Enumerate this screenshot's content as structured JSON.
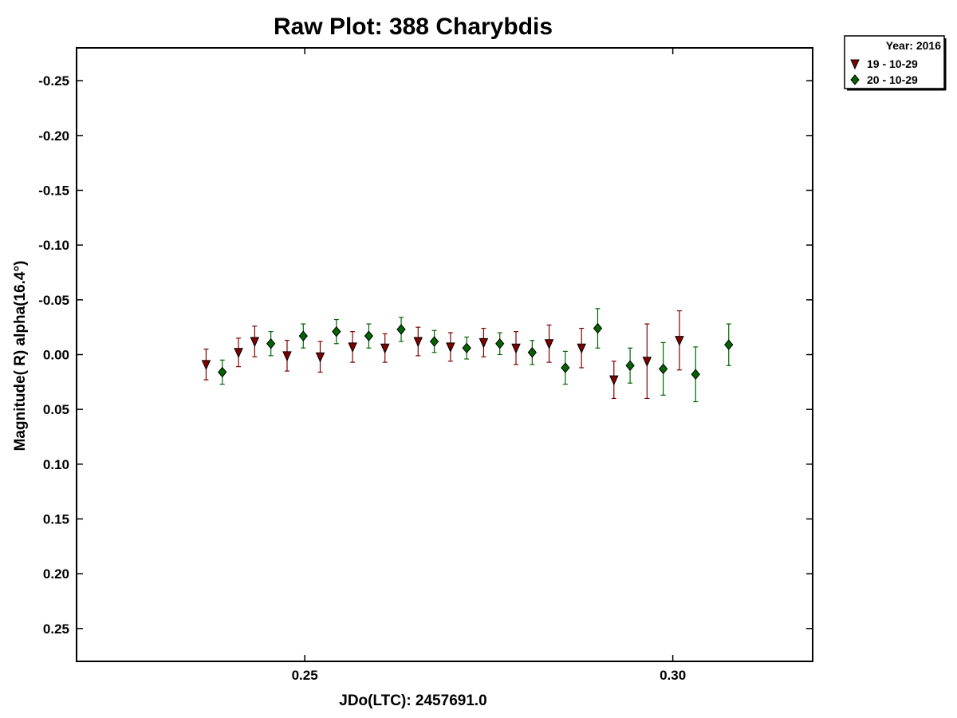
{
  "chart_data": {
    "type": "scatter",
    "title": "Raw Plot: 388 Charybdis",
    "xlabel": "JDo(LTC): 2457691.0",
    "ylabel": "Magnitude( R) alpha(16.4°)",
    "xlim": [
      0.219,
      0.319
    ],
    "ylim": [
      0.28,
      -0.28
    ],
    "y_inverted": true,
    "xticks": [
      {
        "value": 0.25,
        "label": "0.25"
      },
      {
        "value": 0.3,
        "label": "0.30"
      }
    ],
    "yticks": [
      {
        "value": -0.25,
        "label": "-0.25"
      },
      {
        "value": -0.2,
        "label": "-0.20"
      },
      {
        "value": -0.15,
        "label": "-0.15"
      },
      {
        "value": -0.1,
        "label": "-0.10"
      },
      {
        "value": -0.05,
        "label": "-0.05"
      },
      {
        "value": 0.0,
        "label": "0.00"
      },
      {
        "value": 0.05,
        "label": "0.05"
      },
      {
        "value": 0.1,
        "label": "0.10"
      },
      {
        "value": 0.15,
        "label": "0.15"
      },
      {
        "value": 0.2,
        "label": "0.20"
      },
      {
        "value": 0.25,
        "label": "0.25"
      }
    ],
    "grid": false,
    "legend": {
      "placement": "outside-top-right",
      "title": "Year: 2016"
    },
    "series": [
      {
        "name": "19 - 10-29",
        "marker": "triangle-down",
        "color": "#800000",
        "points": [
          {
            "x": 0.2366,
            "y": 0.009,
            "err": 0.014
          },
          {
            "x": 0.241,
            "y": -0.002,
            "err": 0.013
          },
          {
            "x": 0.2432,
            "y": -0.012,
            "err": 0.014
          },
          {
            "x": 0.2476,
            "y": 0.001,
            "err": 0.014
          },
          {
            "x": 0.2521,
            "y": 0.002,
            "err": 0.014
          },
          {
            "x": 0.2565,
            "y": -0.007,
            "err": 0.014
          },
          {
            "x": 0.2609,
            "y": -0.006,
            "err": 0.013
          },
          {
            "x": 0.2654,
            "y": -0.012,
            "err": 0.013
          },
          {
            "x": 0.2698,
            "y": -0.007,
            "err": 0.013
          },
          {
            "x": 0.2743,
            "y": -0.011,
            "err": 0.013
          },
          {
            "x": 0.2787,
            "y": -0.006,
            "err": 0.015
          },
          {
            "x": 0.2832,
            "y": -0.01,
            "err": 0.017
          },
          {
            "x": 0.2876,
            "y": -0.006,
            "err": 0.018
          },
          {
            "x": 0.292,
            "y": 0.023,
            "err": 0.017
          },
          {
            "x": 0.2965,
            "y": 0.006,
            "err": 0.034
          },
          {
            "x": 0.3009,
            "y": -0.013,
            "err": 0.027
          }
        ]
      },
      {
        "name": "20 - 10-29",
        "marker": "diamond",
        "color": "#006400",
        "points": [
          {
            "x": 0.2388,
            "y": 0.016,
            "err": 0.011
          },
          {
            "x": 0.2454,
            "y": -0.01,
            "err": 0.011
          },
          {
            "x": 0.2498,
            "y": -0.017,
            "err": 0.011
          },
          {
            "x": 0.2543,
            "y": -0.021,
            "err": 0.011
          },
          {
            "x": 0.2587,
            "y": -0.017,
            "err": 0.011
          },
          {
            "x": 0.2631,
            "y": -0.023,
            "err": 0.011
          },
          {
            "x": 0.2676,
            "y": -0.012,
            "err": 0.01
          },
          {
            "x": 0.272,
            "y": -0.006,
            "err": 0.01
          },
          {
            "x": 0.2765,
            "y": -0.01,
            "err": 0.01
          },
          {
            "x": 0.2809,
            "y": -0.002,
            "err": 0.011
          },
          {
            "x": 0.2854,
            "y": 0.012,
            "err": 0.015
          },
          {
            "x": 0.2898,
            "y": -0.024,
            "err": 0.018
          },
          {
            "x": 0.2942,
            "y": 0.01,
            "err": 0.016
          },
          {
            "x": 0.2987,
            "y": 0.013,
            "err": 0.024
          },
          {
            "x": 0.3031,
            "y": 0.018,
            "err": 0.025
          },
          {
            "x": 0.3076,
            "y": -0.009,
            "err": 0.019
          }
        ]
      }
    ]
  }
}
